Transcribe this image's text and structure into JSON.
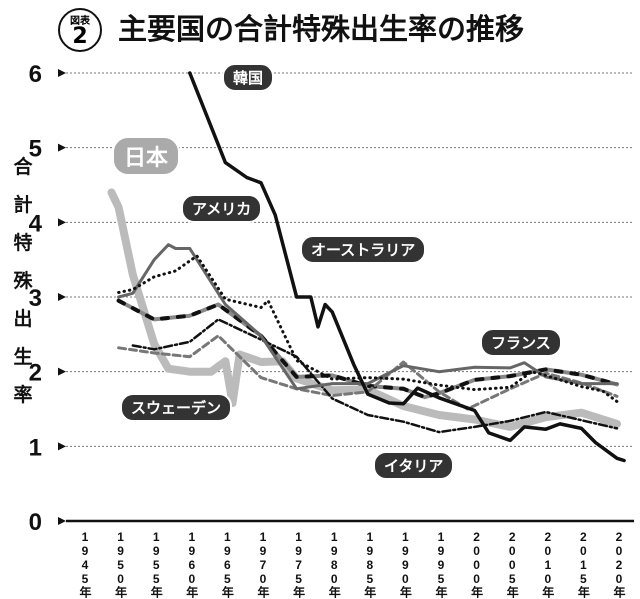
{
  "figure_badge": {
    "label": "図表",
    "number": "2"
  },
  "chart_data": {
    "type": "line",
    "title": "主要国の合計特殊出生率の推移",
    "ylabel": "合計特殊出生率",
    "xlabel": "",
    "ylim": [
      0,
      6
    ],
    "xlim": [
      1945,
      2020
    ],
    "y_ticks": [
      "0",
      "1",
      "2",
      "3",
      "4",
      "5",
      "6"
    ],
    "x_ticks": [
      "1945年",
      "1950年",
      "1955年",
      "1960年",
      "1965年",
      "1970年",
      "1975年",
      "1980年",
      "1985年",
      "1990年",
      "1995年",
      "2000年",
      "2005年",
      "2010年",
      "2015年",
      "2020年"
    ],
    "grid": "horizontal dotted",
    "series": [
      {
        "name": "日本",
        "color": "#bbbbbb",
        "x": [
          1949,
          1950,
          1952,
          1955,
          1957,
          1960,
          1963,
          1965,
          1966,
          1967,
          1970,
          1973,
          1975,
          1980,
          1985,
          1990,
          1995,
          2000,
          2005,
          2010,
          2015,
          2020
        ],
        "y": [
          4.4,
          4.2,
          3.3,
          2.37,
          2.04,
          2.0,
          2.0,
          2.14,
          1.58,
          2.23,
          2.13,
          2.14,
          1.91,
          1.75,
          1.76,
          1.54,
          1.42,
          1.36,
          1.26,
          1.39,
          1.45,
          1.3
        ]
      },
      {
        "name": "韓国",
        "color": "#111111",
        "x": [
          1960,
          1965,
          1968,
          1970,
          1972,
          1975,
          1977,
          1978,
          1979,
          1980,
          1983,
          1985,
          1988,
          1990,
          1992,
          1995,
          2000,
          2002,
          2005,
          2007,
          2010,
          2012,
          2015,
          2017,
          2020,
          2021
        ],
        "y": [
          6.0,
          4.8,
          4.6,
          4.53,
          4.1,
          3.0,
          3.0,
          2.6,
          2.9,
          2.8,
          2.1,
          1.7,
          1.58,
          1.57,
          1.78,
          1.65,
          1.48,
          1.18,
          1.08,
          1.26,
          1.23,
          1.3,
          1.24,
          1.05,
          0.84,
          0.81
        ]
      },
      {
        "name": "アメリカ",
        "color": "#666666",
        "x": [
          1950,
          1952,
          1955,
          1957,
          1958,
          1960,
          1965,
          1970,
          1975,
          1980,
          1985,
          1990,
          1995,
          2000,
          2005,
          2007,
          2010,
          2015,
          2020
        ],
        "y": [
          3.0,
          3.05,
          3.5,
          3.7,
          3.65,
          3.65,
          2.9,
          2.48,
          1.77,
          1.84,
          1.84,
          2.08,
          2.0,
          2.06,
          2.05,
          2.12,
          1.93,
          1.84,
          1.84
        ]
      },
      {
        "name": "オーストラリア",
        "color": "#111111",
        "x": [
          1950,
          1952,
          1955,
          1958,
          1961,
          1965,
          1970,
          1971,
          1975,
          1980,
          1985,
          1990,
          1995,
          2000,
          2005,
          2008,
          2010,
          2015,
          2018,
          2020
        ],
        "y": [
          3.06,
          3.1,
          3.27,
          3.35,
          3.55,
          2.97,
          2.86,
          2.95,
          2.15,
          1.9,
          1.92,
          1.9,
          1.82,
          1.76,
          1.79,
          2.0,
          1.95,
          1.8,
          1.74,
          1.6
        ]
      },
      {
        "name": "フランス",
        "color": "#888888",
        "x": [
          1950,
          1955,
          1960,
          1964,
          1970,
          1975,
          1980,
          1985,
          1990,
          1993,
          1995,
          2000,
          2005,
          2010,
          2015,
          2020
        ],
        "y": [
          2.95,
          2.7,
          2.75,
          2.9,
          2.48,
          1.93,
          1.95,
          1.81,
          1.77,
          1.66,
          1.71,
          1.89,
          1.94,
          2.03,
          1.96,
          1.83
        ]
      },
      {
        "name": "スウェーデン",
        "color": "#777777",
        "x": [
          1950,
          1955,
          1960,
          1964,
          1970,
          1975,
          1980,
          1985,
          1990,
          1995,
          1999,
          2005,
          2010,
          2015,
          2020
        ],
        "y": [
          2.32,
          2.25,
          2.2,
          2.48,
          1.92,
          1.77,
          1.68,
          1.73,
          2.13,
          1.73,
          1.5,
          1.77,
          1.98,
          1.85,
          1.67
        ]
      },
      {
        "name": "イタリア",
        "color": "#111111",
        "x": [
          1952,
          1955,
          1960,
          1964,
          1970,
          1975,
          1980,
          1985,
          1990,
          1995,
          2000,
          2005,
          2010,
          2015,
          2020
        ],
        "y": [
          2.35,
          2.3,
          2.4,
          2.7,
          2.43,
          2.2,
          1.64,
          1.42,
          1.33,
          1.19,
          1.26,
          1.34,
          1.46,
          1.35,
          1.24
        ]
      }
    ]
  }
}
